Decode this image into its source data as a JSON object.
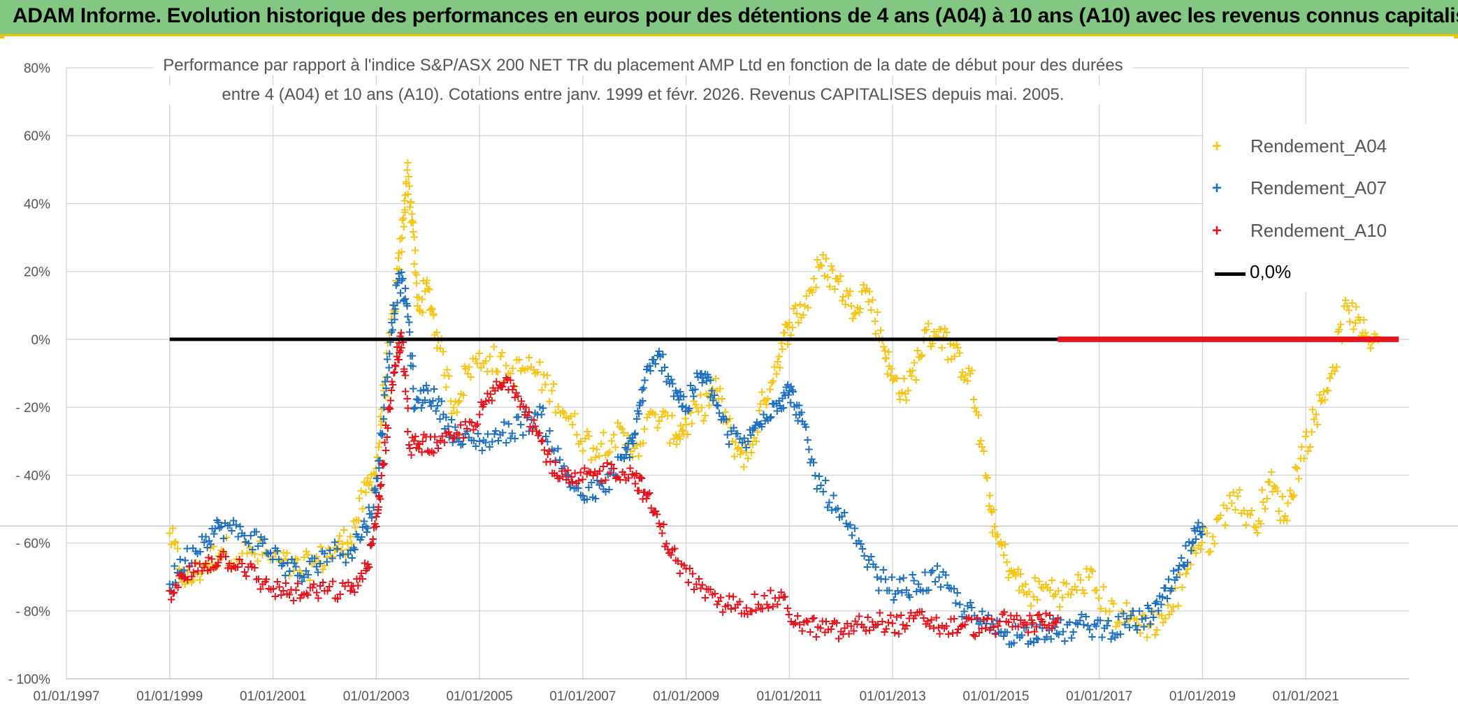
{
  "header": {
    "title": "ADAM Informe. Evolution historique des performances en euros pour des détentions de 4 ans (A04) à 10 ans (A10) avec les revenus connus capitalisés"
  },
  "chart_data": {
    "type": "scatter",
    "title_line1": "Performance par rapport à l'indice S&P/ASX 200 NET TR  du placement AMP Ltd en fonction de la date de début pour des durées",
    "title_line2": "entre 4 (A04) et 10 ans (A10). Cotations entre janv. 1999 et févr. 2026. Revenus CAPITALISES depuis mai. 2005.",
    "x_tick_labels": [
      "01/01/1997",
      "01/01/1999",
      "01/01/2001",
      "01/01/2003",
      "01/01/2005",
      "01/01/2007",
      "01/01/2009",
      "01/01/2011",
      "01/01/2013",
      "01/01/2015",
      "01/01/2017",
      "01/01/2019",
      "01/01/2021"
    ],
    "y_tick_labels": [
      "80%",
      "60%",
      "40%",
      "20%",
      "0%",
      "- 20%",
      "- 40%",
      "- 60%",
      "- 80%",
      "- 100%"
    ],
    "y_tick_values": [
      80,
      60,
      40,
      20,
      0,
      -20,
      -40,
      -60,
      -80,
      -100
    ],
    "xlim": [
      1997.0,
      2023.0
    ],
    "ylim": [
      -100,
      80
    ],
    "legend_position": "top-right",
    "series": [
      {
        "name": "Rendement_A04",
        "color": "#f5c518",
        "marker": "+",
        "points": [
          [
            1999.0,
            -57
          ],
          [
            1999.3,
            -72
          ],
          [
            1999.7,
            -66
          ],
          [
            2000.0,
            -62
          ],
          [
            2000.5,
            -63
          ],
          [
            2001.0,
            -64
          ],
          [
            2001.4,
            -68
          ],
          [
            2001.8,
            -66
          ],
          [
            2002.2,
            -62
          ],
          [
            2002.5,
            -58
          ],
          [
            2002.8,
            -45
          ],
          [
            2003.0,
            -38
          ],
          [
            2003.15,
            -15
          ],
          [
            2003.35,
            10
          ],
          [
            2003.5,
            30
          ],
          [
            2003.6,
            50
          ],
          [
            2003.7,
            35
          ],
          [
            2003.8,
            10
          ],
          [
            2004.0,
            15
          ],
          [
            2004.2,
            0
          ],
          [
            2004.5,
            -20
          ],
          [
            2004.8,
            -8
          ],
          [
            2005.2,
            -5
          ],
          [
            2005.6,
            -10
          ],
          [
            2006.0,
            -8
          ],
          [
            2006.4,
            -15
          ],
          [
            2006.8,
            -25
          ],
          [
            2007.2,
            -32
          ],
          [
            2007.6,
            -28
          ],
          [
            2008.0,
            -32
          ],
          [
            2008.4,
            -22
          ],
          [
            2008.8,
            -28
          ],
          [
            2009.0,
            -25
          ],
          [
            2009.3,
            -20
          ],
          [
            2009.6,
            -15
          ],
          [
            2009.9,
            -30
          ],
          [
            2010.2,
            -35
          ],
          [
            2010.5,
            -18
          ],
          [
            2010.8,
            -5
          ],
          [
            2011.0,
            5
          ],
          [
            2011.3,
            10
          ],
          [
            2011.6,
            22
          ],
          [
            2011.9,
            18
          ],
          [
            2012.2,
            10
          ],
          [
            2012.5,
            15
          ],
          [
            2012.8,
            0
          ],
          [
            2013.0,
            -12
          ],
          [
            2013.3,
            -15
          ],
          [
            2013.6,
            0
          ],
          [
            2013.9,
            3
          ],
          [
            2014.2,
            -5
          ],
          [
            2014.5,
            -10
          ],
          [
            2014.8,
            -40
          ],
          [
            2015.0,
            -58
          ],
          [
            2015.3,
            -68
          ],
          [
            2015.6,
            -75
          ],
          [
            2016.0,
            -73
          ],
          [
            2016.4,
            -75
          ],
          [
            2016.8,
            -70
          ],
          [
            2017.2,
            -80
          ],
          [
            2017.6,
            -82
          ],
          [
            2018.0,
            -84
          ],
          [
            2018.4,
            -80
          ],
          [
            2018.8,
            -62
          ],
          [
            2019.2,
            -58
          ],
          [
            2019.6,
            -45
          ],
          [
            2020.0,
            -55
          ],
          [
            2020.3,
            -42
          ],
          [
            2020.6,
            -52
          ],
          [
            2020.9,
            -35
          ],
          [
            2021.2,
            -22
          ],
          [
            2021.5,
            -10
          ],
          [
            2021.8,
            10
          ],
          [
            2022.1,
            2
          ],
          [
            2022.4,
            0
          ]
        ]
      },
      {
        "name": "Rendement_A07",
        "color": "#1f6fbf",
        "marker": "+",
        "points": [
          [
            1999.0,
            -72
          ],
          [
            1999.3,
            -65
          ],
          [
            1999.7,
            -58
          ],
          [
            2000.0,
            -55
          ],
          [
            2000.4,
            -57
          ],
          [
            2000.8,
            -60
          ],
          [
            2001.2,
            -66
          ],
          [
            2001.6,
            -70
          ],
          [
            2002.0,
            -63
          ],
          [
            2002.5,
            -62
          ],
          [
            2002.8,
            -55
          ],
          [
            2003.0,
            -45
          ],
          [
            2003.15,
            -20
          ],
          [
            2003.3,
            5
          ],
          [
            2003.45,
            18
          ],
          [
            2003.6,
            10
          ],
          [
            2003.75,
            -20
          ],
          [
            2004.0,
            -15
          ],
          [
            2004.3,
            -22
          ],
          [
            2004.6,
            -30
          ],
          [
            2005.0,
            -30
          ],
          [
            2005.4,
            -28
          ],
          [
            2005.8,
            -25
          ],
          [
            2006.2,
            -22
          ],
          [
            2006.6,
            -38
          ],
          [
            2007.0,
            -46
          ],
          [
            2007.4,
            -44
          ],
          [
            2007.8,
            -35
          ],
          [
            2008.0,
            -28
          ],
          [
            2008.2,
            -12
          ],
          [
            2008.5,
            -5
          ],
          [
            2008.8,
            -15
          ],
          [
            2009.0,
            -20
          ],
          [
            2009.3,
            -10
          ],
          [
            2009.5,
            -15
          ],
          [
            2009.8,
            -28
          ],
          [
            2010.2,
            -30
          ],
          [
            2010.5,
            -22
          ],
          [
            2010.8,
            -18
          ],
          [
            2011.0,
            -15
          ],
          [
            2011.2,
            -22
          ],
          [
            2011.5,
            -40
          ],
          [
            2011.9,
            -50
          ],
          [
            2012.3,
            -60
          ],
          [
            2012.7,
            -70
          ],
          [
            2013.1,
            -74
          ],
          [
            2013.5,
            -72
          ],
          [
            2013.9,
            -70
          ],
          [
            2014.3,
            -78
          ],
          [
            2014.7,
            -83
          ],
          [
            2015.1,
            -86
          ],
          [
            2015.5,
            -87
          ],
          [
            2015.9,
            -85
          ],
          [
            2016.3,
            -86
          ],
          [
            2016.7,
            -84
          ],
          [
            2017.1,
            -85
          ],
          [
            2017.5,
            -84
          ],
          [
            2017.9,
            -82
          ],
          [
            2018.2,
            -78
          ],
          [
            2018.5,
            -70
          ],
          [
            2018.8,
            -60
          ],
          [
            2019.0,
            -55
          ]
        ]
      },
      {
        "name": "Rendement_A10",
        "color": "#e3141c",
        "marker": "+",
        "points": [
          [
            1999.0,
            -74
          ],
          [
            1999.3,
            -70
          ],
          [
            1999.7,
            -66
          ],
          [
            2000.0,
            -64
          ],
          [
            2000.4,
            -66
          ],
          [
            2000.8,
            -72
          ],
          [
            2001.2,
            -74
          ],
          [
            2001.6,
            -75
          ],
          [
            2002.0,
            -74
          ],
          [
            2002.5,
            -74
          ],
          [
            2002.8,
            -68
          ],
          [
            2003.0,
            -55
          ],
          [
            2003.1,
            -40
          ],
          [
            2003.25,
            -20
          ],
          [
            2003.4,
            -5
          ],
          [
            2003.5,
            0
          ],
          [
            2003.65,
            -32
          ],
          [
            2003.9,
            -30
          ],
          [
            2004.2,
            -32
          ],
          [
            2004.6,
            -28
          ],
          [
            2005.0,
            -22
          ],
          [
            2005.3,
            -15
          ],
          [
            2005.6,
            -12
          ],
          [
            2005.9,
            -20
          ],
          [
            2006.2,
            -30
          ],
          [
            2006.5,
            -40
          ],
          [
            2006.8,
            -42
          ],
          [
            2007.2,
            -40
          ],
          [
            2007.6,
            -38
          ],
          [
            2008.0,
            -40
          ],
          [
            2008.2,
            -45
          ],
          [
            2008.5,
            -55
          ],
          [
            2008.8,
            -65
          ],
          [
            2009.2,
            -72
          ],
          [
            2009.6,
            -78
          ],
          [
            2010.0,
            -78
          ],
          [
            2010.4,
            -78
          ],
          [
            2010.8,
            -76
          ],
          [
            2011.2,
            -84
          ],
          [
            2011.6,
            -85
          ],
          [
            2012.0,
            -86
          ],
          [
            2012.4,
            -84
          ],
          [
            2012.8,
            -83
          ],
          [
            2013.2,
            -84
          ],
          [
            2013.6,
            -82
          ],
          [
            2014.0,
            -85
          ],
          [
            2014.4,
            -84
          ],
          [
            2014.8,
            -85
          ],
          [
            2015.2,
            -83
          ],
          [
            2015.6,
            -84
          ],
          [
            2015.9,
            -83
          ],
          [
            2016.2,
            -82
          ]
        ]
      },
      {
        "name": "0,0%",
        "color": "#000000",
        "marker": "line",
        "points": [
          [
            1999.0,
            0
          ],
          [
            2016.2,
            0
          ]
        ]
      }
    ],
    "red_zero_band": [
      2016.2,
      2022.8
    ]
  }
}
